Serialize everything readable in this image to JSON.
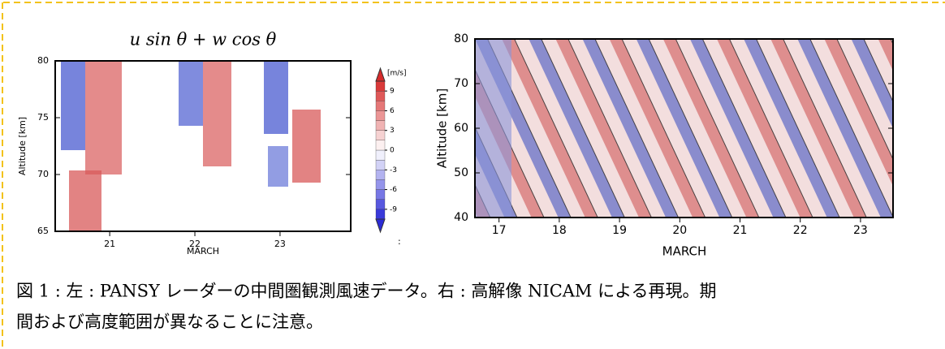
{
  "chart_data": [
    {
      "type": "heatmap",
      "title": "u sin θ + w cos θ",
      "ylabel": "Altitude [km]",
      "xlabel": "MARCH",
      "xlim": [
        20.36,
        23.83
      ],
      "xticks": [
        21,
        22,
        23
      ],
      "ylim": [
        65,
        80
      ],
      "yticks": [
        65,
        70,
        75,
        80
      ],
      "colorbar": {
        "label": "[m/s]",
        "clim": [
          -10.5,
          10.5
        ],
        "ticks": [
          9,
          6,
          3,
          0,
          -3,
          -6,
          -9
        ],
        "note": ":",
        "colors": [
          "#2b2bd6",
          "#ffffff",
          "#d62b2b"
        ]
      }
    },
    {
      "type": "heatmap",
      "ylabel": "Altitude [km]",
      "xlabel": "MARCH",
      "xlim": [
        16.6,
        23.54
      ],
      "xticks": [
        17,
        18,
        19,
        20,
        21,
        22,
        23
      ],
      "ylim": [
        40,
        80
      ],
      "yticks": [
        40,
        50,
        60,
        70,
        80
      ]
    }
  ],
  "caption": {
    "lines": [
      "図 1 : 左 : PANSY レーダーの中間圏観測風速データ。右 : 高解像 NICAM による再現。期",
      "間および高度範囲が異なることに注意。"
    ]
  }
}
